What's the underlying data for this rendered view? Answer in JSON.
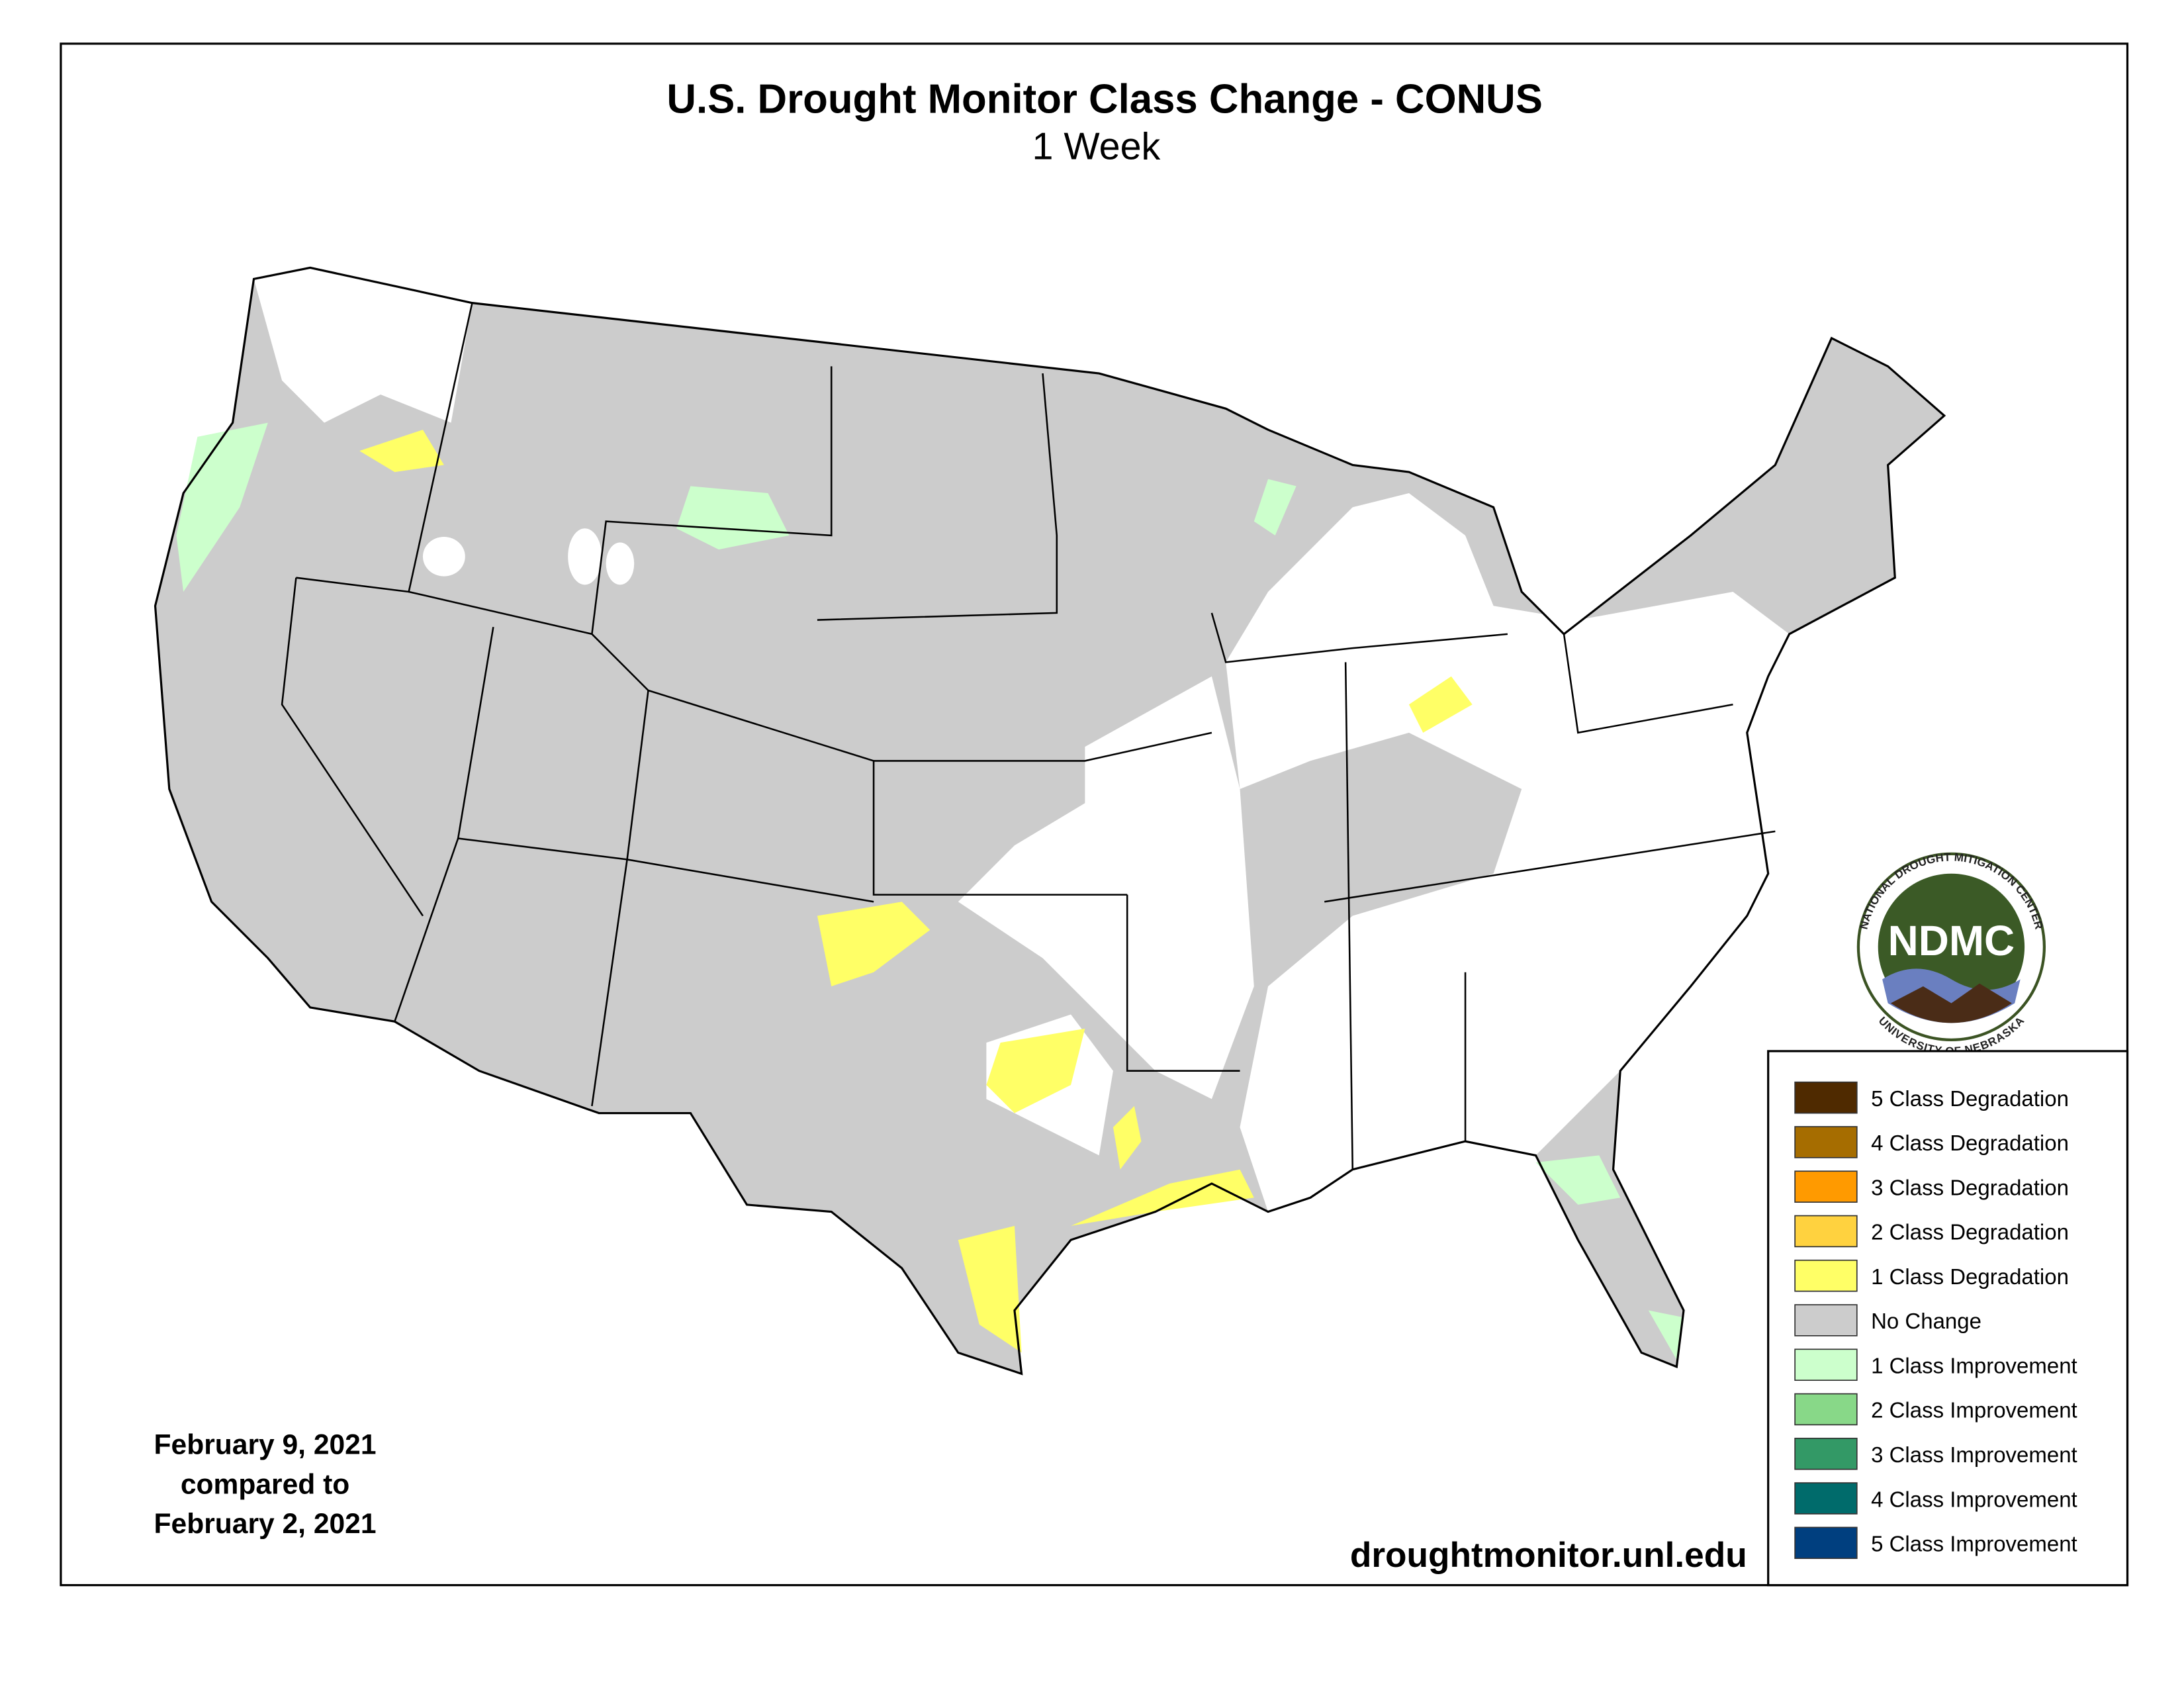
{
  "header": {
    "title": "U.S. Drought Monitor Class Change - CONUS",
    "subtitle": "1 Week"
  },
  "dates": {
    "line1": "February 9, 2021",
    "line2": "compared to",
    "line3": "February 2, 2021"
  },
  "url": "droughtmonitor.unl.edu",
  "logo": {
    "abbr": "NDMC",
    "top": "NATIONAL DROUGHT MITIGATION CENTER",
    "bottom": "UNIVERSITY OF NEBRASKA"
  },
  "legend": {
    "items": [
      {
        "label": "5 Class Degradation",
        "color": "#4f2a00"
      },
      {
        "label": "4 Class Degradation",
        "color": "#a66d00"
      },
      {
        "label": "3 Class Degradation",
        "color": "#ff9a00"
      },
      {
        "label": "2 Class Degradation",
        "color": "#ffd23f"
      },
      {
        "label": "1 Class Degradation",
        "color": "#ffff66"
      },
      {
        "label": "No Change",
        "color": "#cccccc"
      },
      {
        "label": "1 Class Improvement",
        "color": "#ccffcc"
      },
      {
        "label": "2 Class Improvement",
        "color": "#88d888"
      },
      {
        "label": "3 Class Improvement",
        "color": "#339966"
      },
      {
        "label": "4 Class Improvement",
        "color": "#006b6b"
      },
      {
        "label": "5 Class Improvement",
        "color": "#003f7f"
      }
    ]
  }
}
